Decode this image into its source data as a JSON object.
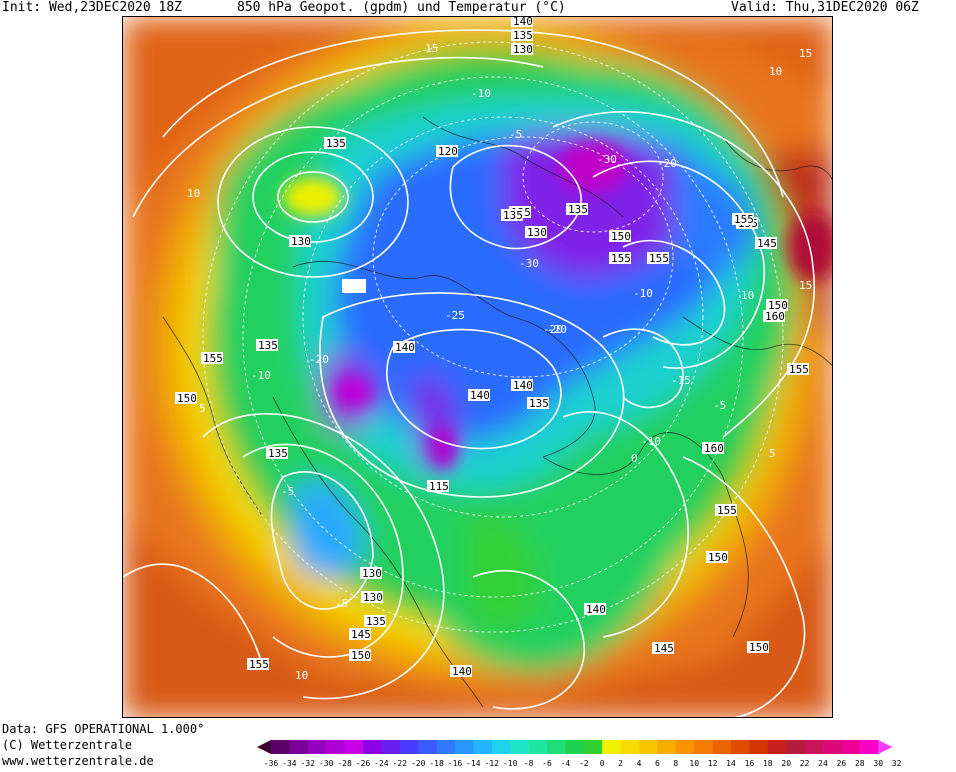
{
  "header": {
    "init": "Init: Wed,23DEC2020 18Z",
    "title": "850 hPa Geopot. (gpdm) und Temperatur (°C)",
    "valid": "Valid: Thu,31DEC2020 06Z"
  },
  "footer": {
    "data_line": "Data: GFS OPERATIONAL 1.000°",
    "copyright": "(C) Wetterzentrale",
    "url": "www.wetterzentrale.de"
  },
  "legend": {
    "ticks": [
      "-36",
      "-34",
      "-32",
      "-30",
      "-28",
      "-26",
      "-24",
      "-22",
      "-20",
      "-18",
      "-16",
      "-14",
      "-12",
      "-10",
      "-8",
      "-6",
      "-4",
      "-2",
      "0",
      "2",
      "4",
      "6",
      "8",
      "10",
      "12",
      "14",
      "16",
      "18",
      "20",
      "22",
      "24",
      "26",
      "28",
      "30",
      "32"
    ],
    "colors": [
      "#3a0030",
      "#5c0066",
      "#7a0099",
      "#9600c0",
      "#b000d8",
      "#c800e8",
      "#8c00e6",
      "#6a1ef0",
      "#4a3cff",
      "#3c5aff",
      "#2f78ff",
      "#2896ff",
      "#22b4ff",
      "#1ed2f0",
      "#1ee6c8",
      "#1ee6a0",
      "#1edc78",
      "#1ed250",
      "#30d030",
      "#f0f000",
      "#f8dc00",
      "#f8c400",
      "#f8ac00",
      "#f89400",
      "#f47c00",
      "#ec6400",
      "#e04c00",
      "#d43400",
      "#c81e1e",
      "#b41e3c",
      "#c8145a",
      "#dc0a78",
      "#ee0096",
      "#fa00c8",
      "#ff3cff"
    ]
  },
  "map": {
    "geopotential_labels": [
      "140",
      "135",
      "130",
      "135",
      "120",
      "125",
      "130",
      "135",
      "150",
      "155",
      "155",
      "155",
      "160",
      "150",
      "145",
      "130",
      "155",
      "135",
      "140",
      "150",
      "135",
      "140",
      "140",
      "135",
      "135",
      "130",
      "115",
      "130",
      "135",
      "140",
      "145",
      "150",
      "155",
      "140",
      "145",
      "150",
      "160",
      "155",
      "150",
      "155",
      "155"
    ],
    "temperature_labels": [
      "15",
      "10",
      "-10",
      "-5",
      "10",
      "-20",
      "-30",
      "-20",
      "-10",
      "5",
      "10",
      "15",
      "-5",
      "-10",
      "-20",
      "-30",
      "-20",
      "-25",
      "-15",
      "-5",
      "-10",
      "-5",
      "0",
      "5",
      "10",
      "15"
    ]
  }
}
